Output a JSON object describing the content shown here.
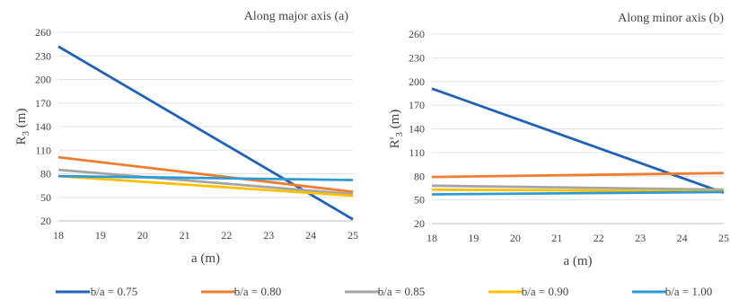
{
  "chart_data": [
    {
      "type": "line",
      "title": "Along major axis (a)",
      "xlabel": "a (m)",
      "ylabel_main": "R",
      "ylabel_sub": "3",
      "ylabel_tail": " (m)",
      "xlim": [
        18,
        25
      ],
      "ylim": [
        20,
        260
      ],
      "xticks": [
        18,
        19,
        20,
        21,
        22,
        23,
        24,
        25
      ],
      "yticks": [
        20,
        50,
        80,
        110,
        140,
        170,
        200,
        230,
        260
      ],
      "grid": "horizontal",
      "series": [
        {
          "name": "b/a = 0.75",
          "color": "#1f62b8",
          "x": [
            18,
            25
          ],
          "y": [
            242,
            22
          ]
        },
        {
          "name": "b/a = 0.80",
          "color": "#ed7d31",
          "x": [
            18,
            25
          ],
          "y": [
            101,
            57
          ]
        },
        {
          "name": "b/a = 0.85",
          "color": "#a5a5a5",
          "x": [
            18,
            25
          ],
          "y": [
            85,
            54
          ]
        },
        {
          "name": "b/a = 0.90",
          "color": "#ffc000",
          "x": [
            18,
            25
          ],
          "y": [
            77,
            52
          ]
        },
        {
          "name": "b/a = 1.00",
          "color": "#2e9bd6",
          "x": [
            18,
            25
          ],
          "y": [
            77,
            72
          ]
        }
      ]
    },
    {
      "type": "line",
      "title": "Along minor axis (b)",
      "xlabel": "a (m)",
      "ylabel_main": "R'",
      "ylabel_sub": "3",
      "ylabel_tail": " (m)",
      "xlim": [
        18,
        25
      ],
      "ylim": [
        20,
        260
      ],
      "xticks": [
        18,
        19,
        20,
        21,
        22,
        23,
        24,
        25
      ],
      "yticks": [
        20,
        50,
        80,
        110,
        140,
        170,
        200,
        230,
        260
      ],
      "grid": "horizontal",
      "series": [
        {
          "name": "b/a = 0.75",
          "color": "#1f62b8",
          "x": [
            18,
            25
          ],
          "y": [
            191,
            59
          ]
        },
        {
          "name": "b/a = 0.80",
          "color": "#ed7d31",
          "x": [
            18,
            25
          ],
          "y": [
            79,
            84
          ]
        },
        {
          "name": "b/a = 0.85",
          "color": "#a5a5a5",
          "x": [
            18,
            25
          ],
          "y": [
            68,
            63
          ]
        },
        {
          "name": "b/a = 0.90",
          "color": "#ffc000",
          "x": [
            18,
            25
          ],
          "y": [
            63,
            61
          ]
        },
        {
          "name": "b/a = 1.00",
          "color": "#2e9bd6",
          "x": [
            18,
            25
          ],
          "y": [
            57,
            60
          ]
        }
      ]
    }
  ],
  "legend": [
    {
      "label": "b/a = 0.75",
      "color": "#1f62b8"
    },
    {
      "label": "b/a = 0.80",
      "color": "#ed7d31"
    },
    {
      "label": "b/a = 0.85",
      "color": "#a5a5a5"
    },
    {
      "label": "b/a = 0.90",
      "color": "#ffc000"
    },
    {
      "label": "b/a = 1.00",
      "color": "#2e9bd6"
    }
  ]
}
